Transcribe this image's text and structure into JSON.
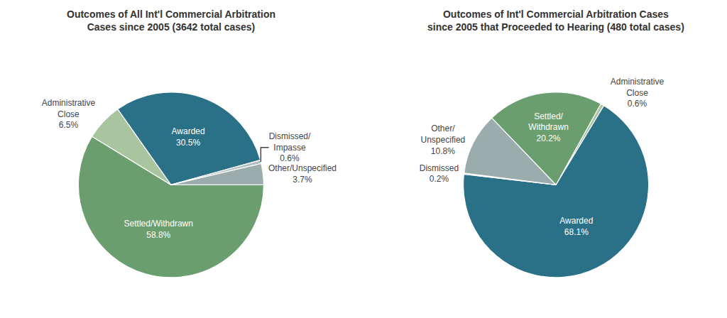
{
  "chart_data": [
    {
      "type": "pie",
      "title": "Outcomes of All Int'l Commercial Arbitration\nCases since 2005 (3642 total cases)",
      "categories": [
        "Settled/Withdrawn",
        "Administrative\nClose",
        "Awarded",
        "Dismissed/\nImpasse",
        "Other/Unspecified"
      ],
      "values": [
        58.8,
        6.5,
        30.5,
        0.6,
        3.7
      ],
      "value_labels": [
        "58.8%",
        "6.5%",
        "30.5%",
        "0.6%",
        "3.7%"
      ],
      "colors": [
        "#6a9e6e",
        "#a8c5a0",
        "#2a7087",
        "#b0bfc0",
        "#9aacac"
      ],
      "data_labels": true
    },
    {
      "type": "pie",
      "title": "Outcomes of Int'l Commercial Arbitration Cases\nsince 2005 that Proceeded to Hearing (480 total cases)",
      "categories": [
        "Administrative\nClose",
        "Awarded",
        "Dismissed",
        "Other/\nUnspecified",
        "Settled/\nWithdrawn"
      ],
      "values": [
        0.6,
        68.1,
        0.2,
        10.8,
        20.2
      ],
      "value_labels": [
        "0.6%",
        "68.1%",
        "0.2%",
        "10.8%",
        "20.2%"
      ],
      "colors": [
        "#a8c5a0",
        "#2a7087",
        "#2a7087",
        "#9aacac",
        "#6a9e6e"
      ],
      "data_labels": true
    }
  ]
}
